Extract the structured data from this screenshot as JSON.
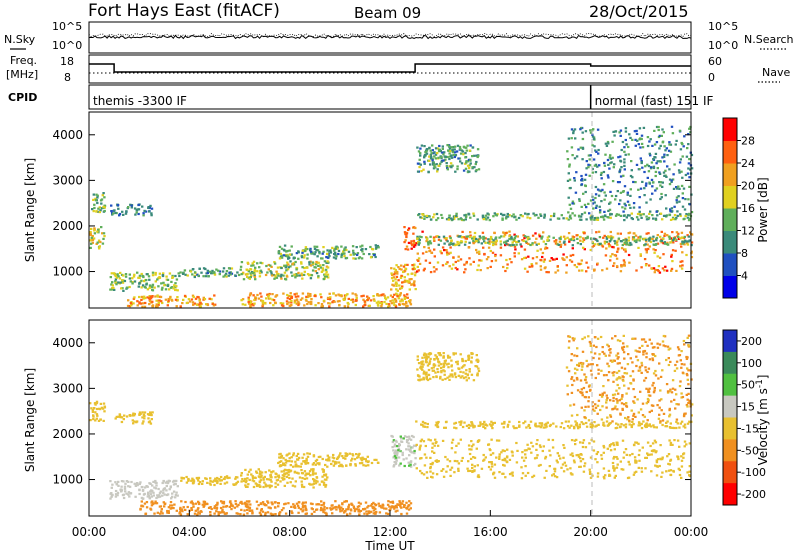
{
  "header": {
    "station": "Fort Hays East (fitACF)",
    "beam": "Beam 09",
    "date": "28/Oct/2015"
  },
  "summary": {
    "nsky_label": "N.Sky",
    "nsearch_label": "N.Search",
    "noise_ticks_left": [
      "10^5",
      "10^0"
    ],
    "noise_ticks_right": [
      "10^5",
      "10^0"
    ],
    "freq_label_top": "Freq.",
    "freq_label_bottom": "[MHz]",
    "freq_ticks": [
      "18",
      "8"
    ],
    "nave_label": "Nave",
    "nave_ticks": [
      "60",
      "0"
    ],
    "cpid_label": "CPID",
    "cpid_segments": [
      {
        "label": "themis -3300 IF",
        "start_hour": 0,
        "end_hour": 20
      },
      {
        "label": "normal (fast) 151 IF",
        "start_hour": 20,
        "end_hour": 24
      }
    ],
    "freq_steps_mhz": [
      {
        "start_hour": 0.0,
        "end_hour": 1.0,
        "freq": 15.5
      },
      {
        "start_hour": 1.0,
        "end_hour": 13.0,
        "freq": 11.5
      },
      {
        "start_hour": 13.0,
        "end_hour": 20.0,
        "freq": 15.5
      },
      {
        "start_hour": 20.0,
        "end_hour": 24.0,
        "freq": 14.5
      }
    ]
  },
  "colors": {
    "power_scale": [
      "#0000e8",
      "#2050c0",
      "#3a8a7a",
      "#5fae5a",
      "#e0d020",
      "#f0a020",
      "#ff6010",
      "#ff0000"
    ],
    "velocity_scale": [
      "#2030c0",
      "#3a8a5a",
      "#50c040",
      "#c8c8c0",
      "#e8c030",
      "#f09020",
      "#f05010",
      "#ff0000"
    ]
  },
  "chart_data": [
    {
      "type": "heatmap",
      "title": "",
      "xlabel": "",
      "ylabel": "Slant Range [km]",
      "xlim": [
        0,
        24
      ],
      "ylim": [
        200,
        4500
      ],
      "y_ticks": [
        "1000",
        "2000",
        "3000",
        "4000"
      ],
      "colorbar_label": "Power [dB]",
      "colorbar_ticks": [
        "4",
        "8",
        "12",
        "16",
        "20",
        "24",
        "28"
      ],
      "colorbar_range": [
        0,
        30
      ],
      "regions": [
        {
          "h0": 0.0,
          "h1": 0.6,
          "r0": 2300,
          "r1": 2750,
          "value": 14
        },
        {
          "h0": 0.0,
          "h1": 0.6,
          "r0": 1500,
          "r1": 2000,
          "value": 18
        },
        {
          "h0": 0.8,
          "h1": 2.5,
          "r0": 2250,
          "r1": 2500,
          "value": 9
        },
        {
          "h0": 0.8,
          "h1": 3.5,
          "r0": 600,
          "r1": 1000,
          "value": 15
        },
        {
          "h0": 1.5,
          "h1": 5.0,
          "r0": 250,
          "r1": 500,
          "value": 22
        },
        {
          "h0": 3.5,
          "h1": 6.0,
          "r0": 900,
          "r1": 1100,
          "value": 12
        },
        {
          "h0": 6.0,
          "h1": 9.5,
          "r0": 850,
          "r1": 1250,
          "value": 16
        },
        {
          "h0": 7.5,
          "h1": 11.5,
          "r0": 1300,
          "r1": 1600,
          "value": 12
        },
        {
          "h0": 6.0,
          "h1": 12.8,
          "r0": 250,
          "r1": 550,
          "value": 22
        },
        {
          "h0": 12.0,
          "h1": 13.0,
          "r0": 600,
          "r1": 1200,
          "value": 22
        },
        {
          "h0": 12.5,
          "h1": 13.0,
          "r0": 1500,
          "r1": 2000,
          "value": 26
        },
        {
          "h0": 13.0,
          "h1": 24.0,
          "r0": 1000,
          "r1": 1900,
          "value": 24
        },
        {
          "h0": 13.0,
          "h1": 24.0,
          "r0": 1600,
          "r1": 1800,
          "value": 14
        },
        {
          "h0": 13.0,
          "h1": 24.0,
          "r0": 2150,
          "r1": 2300,
          "value": 13
        },
        {
          "h0": 13.0,
          "h1": 15.5,
          "r0": 3200,
          "r1": 3800,
          "value": 12
        },
        {
          "h0": 19.0,
          "h1": 24.0,
          "r0": 2300,
          "r1": 4200,
          "value": 10
        }
      ]
    },
    {
      "type": "heatmap",
      "title": "",
      "xlabel": "Time UT",
      "ylabel": "Slant Range [km]",
      "xlim": [
        0,
        24
      ],
      "ylim": [
        200,
        4500
      ],
      "x_ticks": [
        "00:00",
        "04:00",
        "08:00",
        "12:00",
        "16:00",
        "20:00",
        "00:00"
      ],
      "y_ticks": [
        "1000",
        "2000",
        "3000",
        "4000"
      ],
      "colorbar_label": "Velocity [m s^-1]",
      "colorbar_ticks": [
        "200",
        "100",
        "50",
        "15",
        "-15",
        "-50",
        "-100",
        "-200"
      ],
      "regions": [
        {
          "h0": 0.0,
          "h1": 0.6,
          "r0": 2300,
          "r1": 2750,
          "value": 0
        },
        {
          "h0": 1.0,
          "h1": 2.5,
          "r0": 2250,
          "r1": 2500,
          "value": 0
        },
        {
          "h0": 0.8,
          "h1": 3.5,
          "r0": 600,
          "r1": 1000,
          "value": 30
        },
        {
          "h0": 2.0,
          "h1": 12.8,
          "r0": 250,
          "r1": 550,
          "value": -30
        },
        {
          "h0": 3.5,
          "h1": 6.0,
          "r0": 900,
          "r1": 1100,
          "value": 0
        },
        {
          "h0": 6.0,
          "h1": 9.5,
          "r0": 850,
          "r1": 1250,
          "value": 0
        },
        {
          "h0": 7.5,
          "h1": 11.5,
          "r0": 1300,
          "r1": 1600,
          "value": 0
        },
        {
          "h0": 12.0,
          "h1": 13.0,
          "r0": 1300,
          "r1": 2000,
          "value": 40
        },
        {
          "h0": 13.0,
          "h1": 24.0,
          "r0": 1050,
          "r1": 1900,
          "value": 0
        },
        {
          "h0": 13.0,
          "h1": 24.0,
          "r0": 2150,
          "r1": 2300,
          "value": 0
        },
        {
          "h0": 13.0,
          "h1": 15.5,
          "r0": 3200,
          "r1": 3800,
          "value": 0
        },
        {
          "h0": 19.0,
          "h1": 24.0,
          "r0": 2300,
          "r1": 4200,
          "value": -20
        }
      ]
    }
  ]
}
